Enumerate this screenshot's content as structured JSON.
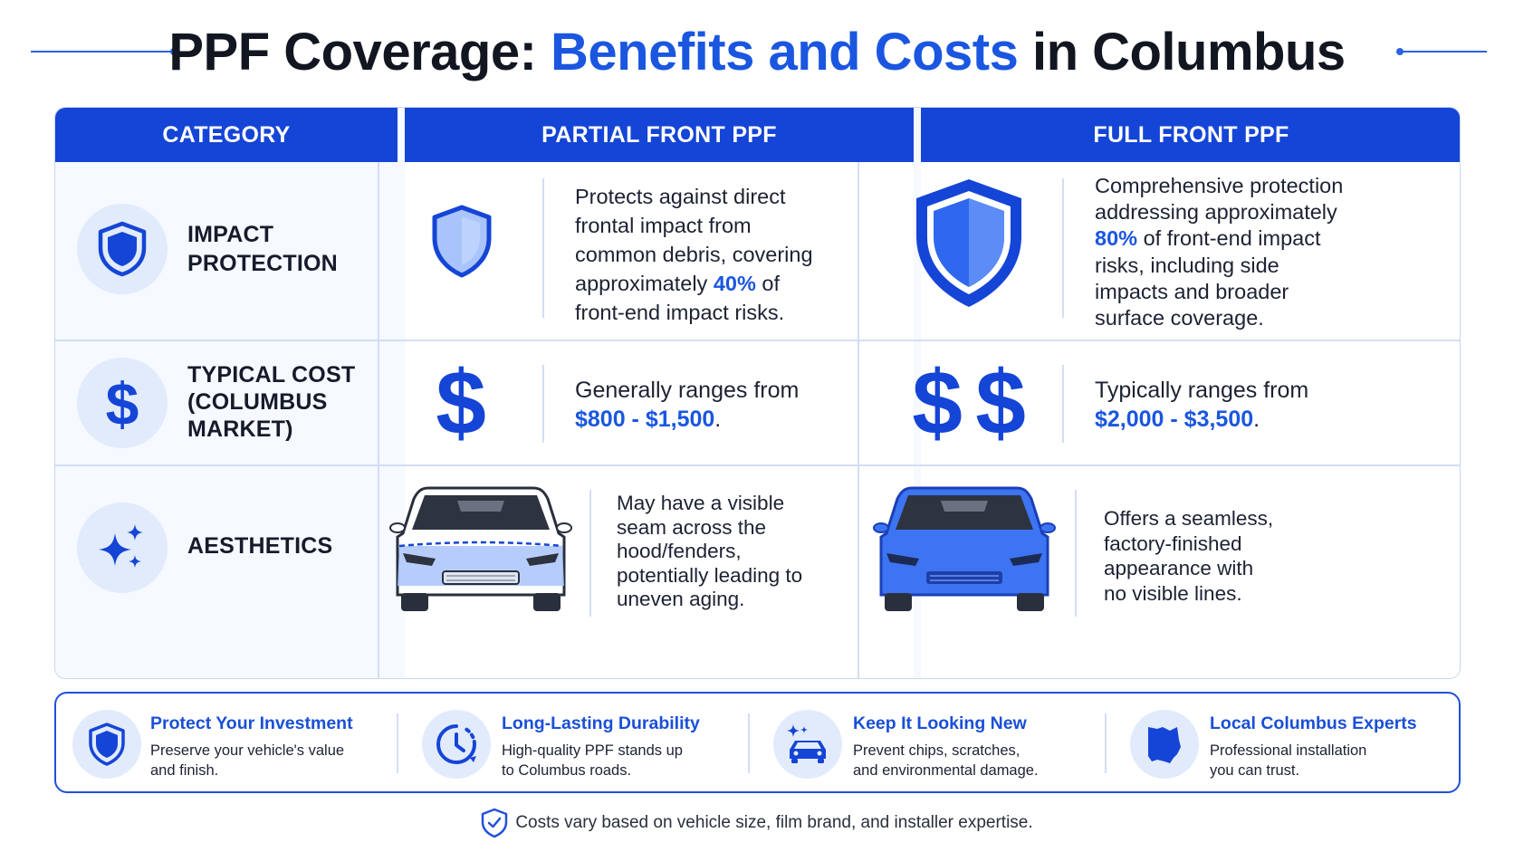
{
  "title": {
    "part1": "PPF Coverage: ",
    "accent": "Benefits and Costs",
    "part2": " in Columbus"
  },
  "headers": {
    "category": "CATEGORY",
    "partial": "PARTIAL FRONT PPF",
    "full": "FULL FRONT PPF"
  },
  "rows": {
    "impact": {
      "label_l1": "IMPACT",
      "label_l2": "PROTECTION",
      "partial": {
        "l1": "Protects against direct",
        "l2": "frontal impact from",
        "l3": "common debris, covering",
        "l4a": "approximately ",
        "l4b": "40%",
        "l4c": " of",
        "l5": "front-end impact risks."
      },
      "full": {
        "l1": "Comprehensive protection",
        "l2": "addressing approximately",
        "l3a": "80%",
        "l3b": " of front-end impact",
        "l4": "risks, including side",
        "l5": "impacts and broader",
        "l6": "surface coverage."
      }
    },
    "cost": {
      "label_l1": "TYPICAL COST",
      "label_l2": "(COLUMBUS",
      "label_l3": "MARKET)",
      "partial": {
        "l1": "Generally ranges from",
        "price": "$800 - $1,500",
        "end": "."
      },
      "full": {
        "l1": "Typically ranges from",
        "price": "$2,000 - $3,500",
        "end": "."
      }
    },
    "aesthetics": {
      "label": "AESTHETICS",
      "partial": {
        "l1": "May have a visible",
        "l2": "seam across the",
        "l3": "hood/fenders,",
        "l4": "potentially leading to",
        "l5": "uneven aging."
      },
      "full": {
        "l1": "Offers a seamless,",
        "l2": "factory-finished",
        "l3": "appearance with",
        "l4": "no visible lines."
      }
    }
  },
  "benefits": [
    {
      "title": "Protect Your Investment",
      "l1": "Preserve your vehicle's value",
      "l2": "and finish.",
      "icon": "shield-icon"
    },
    {
      "title": "Long-Lasting Durability",
      "l1": "High-quality PPF stands up",
      "l2": "to Columbus roads.",
      "icon": "clock-icon"
    },
    {
      "title": "Keep It Looking New",
      "l1": "Prevent chips, scratches,",
      "l2": "and environmental damage.",
      "icon": "sparkle-car-icon"
    },
    {
      "title": "Local Columbus Experts",
      "l1": "Professional installation",
      "l2": "you can trust.",
      "icon": "ohio-state-icon"
    }
  ],
  "footnote": "Costs vary based on vehicle size, film brand, and installer expertise.",
  "colors": {
    "primary": "#1545d6",
    "accent_text": "#1a56e0",
    "light_circle": "#e1ebfc"
  }
}
